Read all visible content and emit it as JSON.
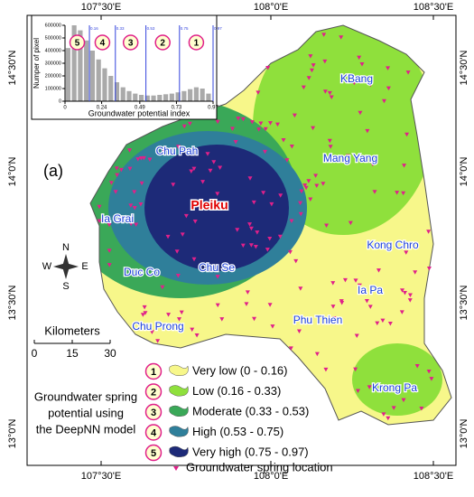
{
  "map": {
    "panel": "(a)",
    "graticule": {
      "lon": [
        "107°30'E",
        "108°0'E",
        "108°30'E"
      ],
      "lat": [
        "14°30'N",
        "14°0'N",
        "13°30'N",
        "13°0'N"
      ]
    },
    "places": [
      "KBang",
      "Chu Pah",
      "Mang Yang",
      "Ia Grai",
      "Kong Chro",
      "Duc Co",
      "Chu Se",
      "Ia Pa",
      "Chu Prong",
      "Phu Thien",
      "Krong Pa"
    ],
    "capital": "Pleiku",
    "north_arrow": {
      "n": "N",
      "s": "S",
      "e": "E",
      "w": "W"
    },
    "scale": {
      "title": "Kilometers",
      "ticks": [
        0,
        15,
        30
      ]
    },
    "legend": {
      "title": [
        "Groundwater spring",
        "potential using",
        "the DeepNN model"
      ],
      "items": [
        {
          "number": "1",
          "label": "Very low (0 - 0.16)",
          "color": "#f7f78a"
        },
        {
          "number": "2",
          "label": "Low (0.16 - 0.33)",
          "color": "#8fe03c"
        },
        {
          "number": "3",
          "label": "Moderate (0.33 - 0.53)",
          "color": "#3aa858"
        },
        {
          "number": "4",
          "label": "High (0.53 - 0.75)",
          "color": "#2f7f9a"
        },
        {
          "number": "5",
          "label": "Very high (0.75 - 0.97)",
          "color": "#1d2a78"
        }
      ],
      "points": "Groundwater spring location"
    }
  },
  "inset": {
    "type": "histogram",
    "ylabel": "Numper of pixel",
    "xlabel": "Groundwater potential index",
    "xlim": [
      0,
      0.97
    ],
    "ylim": [
      0,
      600000
    ],
    "xticks": [
      0,
      0.24,
      0.49,
      0.73,
      0.97
    ],
    "yticks": [
      0,
      100000,
      200000,
      300000,
      400000,
      500000,
      600000
    ],
    "breaks": [
      0.16,
      0.33,
      0.53,
      0.75,
      0.97
    ],
    "classes": [
      "5",
      "4",
      "3",
      "2",
      "1"
    ],
    "bins": [
      0,
      0.04,
      0.08,
      0.12,
      0.16,
      0.2,
      0.24,
      0.28,
      0.32,
      0.36,
      0.4,
      0.44,
      0.48,
      0.52,
      0.56,
      0.6,
      0.64,
      0.68,
      0.72,
      0.76,
      0.8,
      0.84,
      0.88,
      0.92,
      0.96
    ],
    "counts": [
      420000,
      600000,
      560000,
      480000,
      400000,
      330000,
      260000,
      200000,
      150000,
      110000,
      80000,
      60000,
      50000,
      45000,
      45000,
      50000,
      55000,
      60000,
      70000,
      80000,
      95000,
      110000,
      100000,
      60000
    ]
  }
}
